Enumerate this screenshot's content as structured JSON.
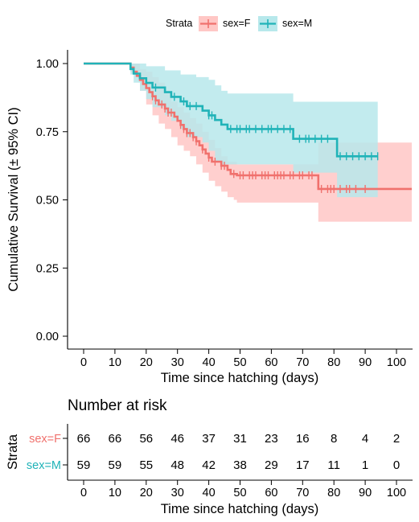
{
  "chart_data": [
    {
      "type": "line",
      "subtype": "kaplan-meier",
      "xlabel": "Time since hatching (days)",
      "ylabel": "Cumulative Survival (± 95% CI)",
      "xlim": [
        0,
        100
      ],
      "ylim": [
        0,
        1
      ],
      "x_ticks": [
        0,
        10,
        20,
        30,
        40,
        50,
        60,
        70,
        80,
        90,
        100
      ],
      "y_ticks": [
        "0.00",
        "0.25",
        "0.50",
        "0.75",
        "1.00"
      ],
      "grid": false,
      "legend": {
        "title": "Strata",
        "placement": "top",
        "entries": [
          "sex=F",
          "sex=M"
        ]
      },
      "series": [
        {
          "name": "sex=F",
          "color": "#f0716d",
          "band_color": "#ffc7c5",
          "steps": [
            [
              0,
              1.0
            ],
            [
              15,
              0.985
            ],
            [
              16,
              0.97
            ],
            [
              17,
              0.955
            ],
            [
              18,
              0.94
            ],
            [
              19,
              0.925
            ],
            [
              20,
              0.91
            ],
            [
              21,
              0.895
            ],
            [
              22,
              0.88
            ],
            [
              23,
              0.865
            ],
            [
              24,
              0.85
            ],
            [
              26,
              0.835
            ],
            [
              27,
              0.82
            ],
            [
              29,
              0.805
            ],
            [
              30,
              0.79
            ],
            [
              31,
              0.775
            ],
            [
              32,
              0.76
            ],
            [
              33,
              0.745
            ],
            [
              35,
              0.73
            ],
            [
              36,
              0.715
            ],
            [
              37,
              0.7
            ],
            [
              38,
              0.685
            ],
            [
              39,
              0.67
            ],
            [
              40,
              0.655
            ],
            [
              41,
              0.64
            ],
            [
              44,
              0.625
            ],
            [
              46,
              0.61
            ],
            [
              47,
              0.595
            ],
            [
              49,
              0.59
            ],
            [
              75,
              0.54
            ],
            [
              105,
              0.54
            ]
          ],
          "upper": [
            [
              0,
              1.0
            ],
            [
              15,
              1.0
            ],
            [
              18,
              0.98
            ],
            [
              20,
              0.97
            ],
            [
              22,
              0.95
            ],
            [
              24,
              0.93
            ],
            [
              26,
              0.9
            ],
            [
              28,
              0.86
            ],
            [
              30,
              0.84
            ],
            [
              32,
              0.82
            ],
            [
              34,
              0.8
            ],
            [
              36,
              0.78
            ],
            [
              38,
              0.75
            ],
            [
              40,
              0.72
            ],
            [
              42,
              0.69
            ],
            [
              44,
              0.66
            ],
            [
              46,
              0.64
            ],
            [
              49,
              0.63
            ],
            [
              75,
              0.63
            ],
            [
              75,
              0.59
            ],
            [
              75,
              0.71
            ],
            [
              105,
              0.71
            ]
          ],
          "lower": [
            [
              0,
              1.0
            ],
            [
              15,
              0.97
            ],
            [
              18,
              0.9
            ],
            [
              20,
              0.85
            ],
            [
              22,
              0.81
            ],
            [
              24,
              0.78
            ],
            [
              26,
              0.76
            ],
            [
              28,
              0.73
            ],
            [
              30,
              0.7
            ],
            [
              32,
              0.68
            ],
            [
              34,
              0.66
            ],
            [
              36,
              0.63
            ],
            [
              38,
              0.6
            ],
            [
              40,
              0.57
            ],
            [
              42,
              0.55
            ],
            [
              44,
              0.53
            ],
            [
              46,
              0.51
            ],
            [
              48,
              0.5
            ],
            [
              49,
              0.49
            ],
            [
              75,
              0.49
            ],
            [
              75,
              0.42
            ],
            [
              105,
              0.42
            ]
          ],
          "censored": [
            22,
            23,
            25,
            26,
            27,
            28,
            31,
            32,
            33,
            34,
            35,
            36,
            38,
            40,
            42,
            44,
            45,
            48,
            50,
            51,
            53,
            54,
            55,
            57,
            58,
            59,
            61,
            62,
            63,
            64,
            66,
            67,
            69,
            70,
            72,
            73,
            76,
            78,
            79,
            80,
            82,
            84,
            85,
            87,
            90
          ]
        },
        {
          "name": "sex=M",
          "color": "#20b3b8",
          "band_color": "#b7e8eb",
          "steps": [
            [
              0,
              1.0
            ],
            [
              15,
              0.98
            ],
            [
              16,
              0.963
            ],
            [
              18,
              0.946
            ],
            [
              20,
              0.929
            ],
            [
              22,
              0.912
            ],
            [
              26,
              0.895
            ],
            [
              28,
              0.878
            ],
            [
              31,
              0.861
            ],
            [
              33,
              0.844
            ],
            [
              38,
              0.827
            ],
            [
              40,
              0.81
            ],
            [
              42,
              0.793
            ],
            [
              44,
              0.776
            ],
            [
              46,
              0.76
            ],
            [
              67,
              0.724
            ],
            [
              81,
              0.66
            ],
            [
              94,
              0.66
            ]
          ],
          "upper": [
            [
              0,
              1.0
            ],
            [
              16,
              1.0
            ],
            [
              20,
              0.99
            ],
            [
              26,
              0.975
            ],
            [
              31,
              0.96
            ],
            [
              36,
              0.95
            ],
            [
              40,
              0.94
            ],
            [
              42,
              0.92
            ],
            [
              44,
              0.9
            ],
            [
              46,
              0.89
            ],
            [
              67,
              0.89
            ],
            [
              67,
              0.86
            ],
            [
              81,
              0.86
            ],
            [
              94,
              0.86
            ]
          ],
          "lower": [
            [
              0,
              1.0
            ],
            [
              15,
              0.96
            ],
            [
              16,
              0.93
            ],
            [
              18,
              0.9
            ],
            [
              20,
              0.87
            ],
            [
              22,
              0.84
            ],
            [
              26,
              0.81
            ],
            [
              28,
              0.79
            ],
            [
              31,
              0.76
            ],
            [
              33,
              0.73
            ],
            [
              38,
              0.71
            ],
            [
              40,
              0.68
            ],
            [
              42,
              0.64
            ],
            [
              44,
              0.63
            ],
            [
              46,
              0.63
            ],
            [
              67,
              0.6
            ],
            [
              81,
              0.51
            ],
            [
              94,
              0.51
            ]
          ],
          "censored": [
            23,
            29,
            32,
            34,
            36,
            40,
            41,
            47,
            49,
            50,
            52,
            53,
            55,
            57,
            59,
            60,
            62,
            64,
            66,
            69,
            71,
            72,
            74,
            76,
            78,
            82,
            84,
            86,
            88,
            90,
            92,
            94
          ]
        }
      ]
    },
    {
      "type": "table",
      "title": "Number at risk",
      "ylabel": "Strata",
      "xlabel": "Time since hatching (days)",
      "x_ticks": [
        0,
        10,
        20,
        30,
        40,
        50,
        60,
        70,
        80,
        90,
        100
      ],
      "rows": [
        {
          "name": "sex=F",
          "color": "#f0716d",
          "values": [
            "66",
            "66",
            "56",
            "46",
            "37",
            "31",
            "23",
            "16",
            "8",
            "4",
            "2"
          ]
        },
        {
          "name": "sex=M",
          "color": "#20b3b8",
          "values": [
            "59",
            "59",
            "55",
            "48",
            "42",
            "38",
            "29",
            "17",
            "11",
            "1",
            "0"
          ]
        }
      ]
    }
  ]
}
